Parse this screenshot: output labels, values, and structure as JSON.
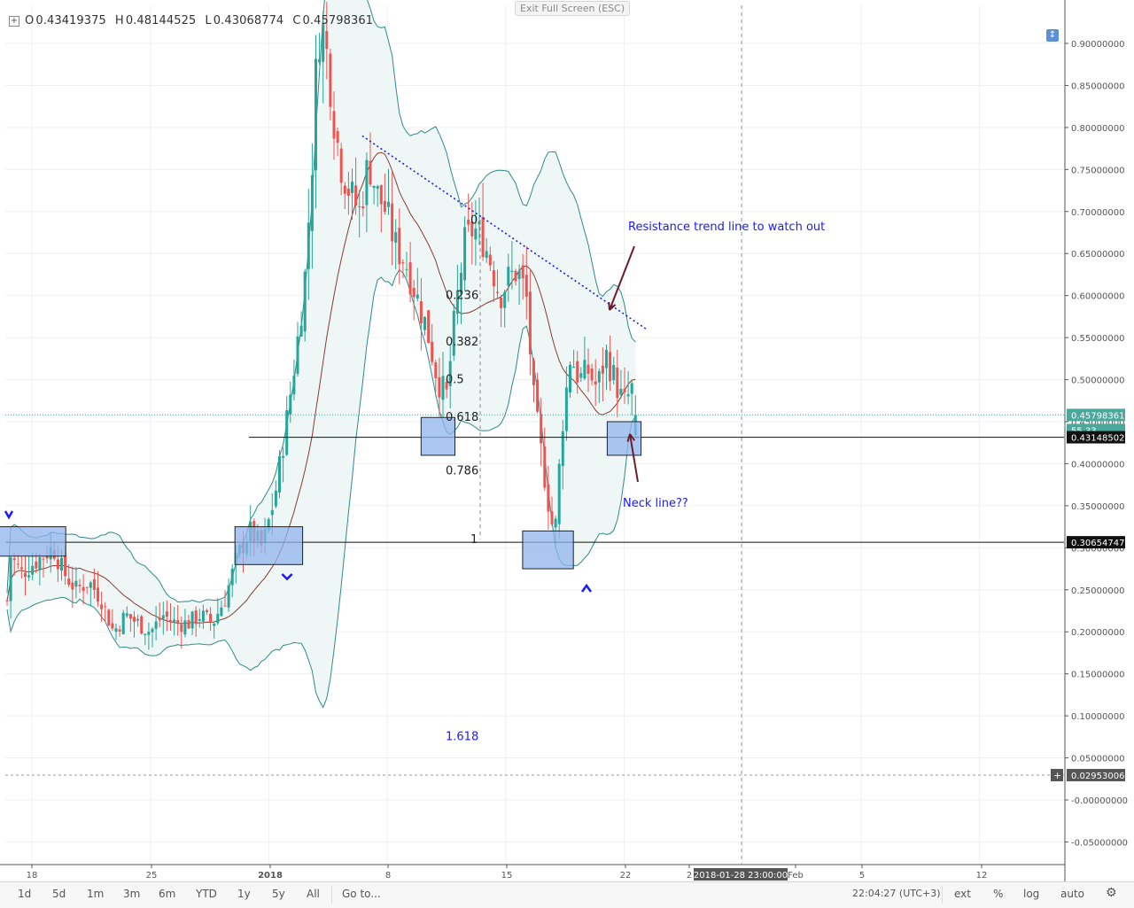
{
  "ohlc": {
    "open_label": "O",
    "open": "0.43419375",
    "high_label": "H",
    "high": "0.48144525",
    "low_label": "L",
    "low": "0.43068774",
    "close_label": "C",
    "close": "0.45798361"
  },
  "exit_fullscreen": "Exit Full Screen (ESC)",
  "price_axis": {
    "ticks": [
      "0.90000000",
      "0.85000000",
      "0.80000000",
      "0.75000000",
      "0.70000000",
      "0.65000000",
      "0.60000000",
      "0.55000000",
      "0.50000000",
      "0.45000000",
      "0.40000000",
      "0.35000000",
      "0.30000000",
      "0.25000000",
      "0.20000000",
      "0.15000000",
      "0.10000000",
      "0.05000000",
      "-0.00000000",
      "-0.05000000"
    ],
    "current_price": "0.45798361",
    "secondary_tag": "55.33",
    "neckline_tag": "0.43148502",
    "support_tag": "0.30654747",
    "fib_ext_tag": "0.02953006",
    "fib_ext_plus": "+"
  },
  "time_axis": {
    "labels": [
      "18",
      "25",
      "2018",
      "8",
      "15",
      "22",
      "2",
      "Feb",
      "5",
      "12"
    ],
    "crosshair_time": "2018-01-28 23:00:00"
  },
  "fib_levels": {
    "labels": [
      "0",
      "0.236",
      "0.382",
      "0.5",
      "0.618",
      "0.786",
      "1",
      "1.618"
    ],
    "ratios": [
      0,
      0.236,
      0.382,
      0.5,
      0.618,
      0.786,
      1,
      1.618
    ]
  },
  "annotations": {
    "resistance_text": "Resistance trend line to watch out",
    "neckline_text": "Neck line??"
  },
  "toolbar": {
    "ranges": [
      "1d",
      "5d",
      "1m",
      "3m",
      "6m",
      "YTD",
      "1y",
      "5y",
      "All"
    ],
    "goto": "Go to...",
    "clock": "22:04:27 (UTC+3)",
    "ext": "ext",
    "percent": "%",
    "log": "log",
    "auto": "auto",
    "settings_icon": "gear-icon"
  },
  "colors": {
    "bull": "#26a69a",
    "bear": "#ef5350",
    "band_line": "#2e8a8a",
    "band_fill": "#eef7f6",
    "sma_line": "#8b3a2e",
    "annotation_blue": "#1a1aff",
    "zone_fill": "#8fb4ec",
    "arrow_dark": "#6b1d2a"
  },
  "chart_data": {
    "type": "candlestick",
    "title": "",
    "xlabel": "",
    "ylabel": "",
    "ylim": [
      -0.07,
      0.94
    ],
    "x_range": [
      "2017-12-16",
      "2018-01-23"
    ],
    "grid": true,
    "last_price": 0.45798361,
    "levels": {
      "neckline": 0.43148502,
      "support": 0.30654747,
      "fib_extension_1_618": 0.02953006
    },
    "fib_anchor": {
      "high": 0.69,
      "low": 0.31
    },
    "resistance_trendline": [
      {
        "x": "2018-01-06",
        "y": 0.79
      },
      {
        "x": "2018-01-23",
        "y": 0.56
      }
    ],
    "zones": [
      {
        "x": [
          "2017-12-16",
          "2017-12-20"
        ],
        "y": [
          0.29,
          0.325
        ]
      },
      {
        "x": [
          "2017-12-30",
          "2018-01-03"
        ],
        "y": [
          0.28,
          0.325
        ]
      },
      {
        "x": [
          "2018-01-10",
          "2018-01-12"
        ],
        "y": [
          0.41,
          0.455
        ]
      },
      {
        "x": [
          "2018-01-16",
          "2018-01-19"
        ],
        "y": [
          0.275,
          0.32
        ]
      },
      {
        "x": [
          "2018-01-21",
          "2018-01-23"
        ],
        "y": [
          0.41,
          0.45
        ]
      }
    ],
    "series": [
      {
        "name": "",
        "values_close_path": [
          [
            0,
            0.21
          ],
          [
            6,
            0.29
          ],
          [
            18,
            0.27
          ],
          [
            30,
            0.28
          ],
          [
            42,
            0.29
          ],
          [
            54,
            0.3
          ],
          [
            66,
            0.27
          ],
          [
            80,
            0.25
          ],
          [
            94,
            0.26
          ],
          [
            108,
            0.24
          ],
          [
            122,
            0.2
          ],
          [
            136,
            0.22
          ],
          [
            150,
            0.21
          ],
          [
            164,
            0.2
          ],
          [
            178,
            0.22
          ],
          [
            192,
            0.21
          ],
          [
            206,
            0.21
          ],
          [
            220,
            0.22
          ],
          [
            234,
            0.21
          ],
          [
            248,
            0.24
          ],
          [
            262,
            0.29
          ],
          [
            276,
            0.32
          ],
          [
            290,
            0.3
          ],
          [
            304,
            0.36
          ],
          [
            316,
            0.44
          ],
          [
            328,
            0.53
          ],
          [
            338,
            0.62
          ],
          [
            346,
            0.75
          ],
          [
            352,
            0.9
          ],
          [
            358,
            0.92
          ],
          [
            364,
            0.88
          ],
          [
            372,
            0.8
          ],
          [
            380,
            0.75
          ],
          [
            390,
            0.72
          ],
          [
            400,
            0.7
          ],
          [
            410,
            0.76
          ],
          [
            420,
            0.72
          ],
          [
            430,
            0.7
          ],
          [
            440,
            0.66
          ],
          [
            452,
            0.64
          ],
          [
            464,
            0.6
          ],
          [
            476,
            0.56
          ],
          [
            488,
            0.5
          ],
          [
            498,
            0.48
          ],
          [
            508,
            0.58
          ],
          [
            518,
            0.66
          ],
          [
            528,
            0.68
          ],
          [
            538,
            0.67
          ],
          [
            548,
            0.64
          ],
          [
            558,
            0.6
          ],
          [
            568,
            0.62
          ],
          [
            578,
            0.63
          ],
          [
            588,
            0.6
          ],
          [
            596,
            0.48
          ],
          [
            604,
            0.42
          ],
          [
            612,
            0.36
          ],
          [
            620,
            0.31
          ],
          [
            628,
            0.44
          ],
          [
            638,
            0.53
          ],
          [
            648,
            0.5
          ],
          [
            658,
            0.51
          ],
          [
            668,
            0.49
          ],
          [
            678,
            0.53
          ],
          [
            688,
            0.5
          ],
          [
            698,
            0.47
          ],
          [
            708,
            0.49
          ],
          [
            716,
            0.46
          ]
        ]
      }
    ]
  }
}
